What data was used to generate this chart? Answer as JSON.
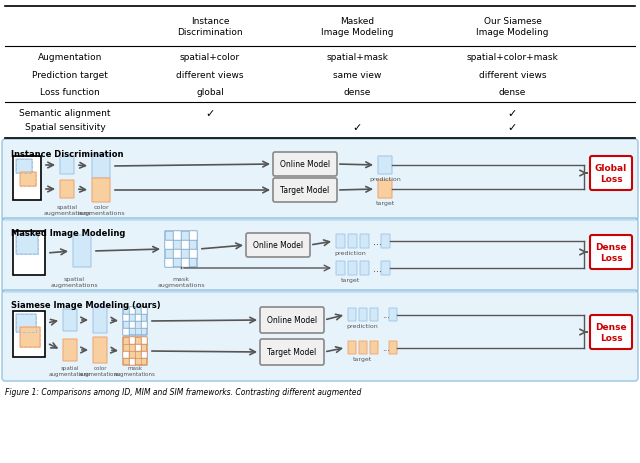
{
  "title": "Figure 1: Comparisons among ID, MIM and SIM frameworks. Contrasting different augmented",
  "border_color": "#5ba3d0",
  "table": {
    "col_headers": [
      "",
      "Instance\nDiscrimination",
      "Masked\nImage Modeling",
      "Our Siamese\nImage Modeling"
    ],
    "rows": [
      [
        "Augmentation",
        "spatial+color",
        "spatial+mask",
        "spatial+color+mask"
      ],
      [
        "Prediction target",
        "different views",
        "same view",
        "different views"
      ],
      [
        "Loss function",
        "global",
        "dense",
        "dense"
      ]
    ],
    "check_rows": [
      [
        "Semantic alignment",
        true,
        false,
        true
      ],
      [
        "Spatial sensitivity",
        false,
        true,
        true
      ]
    ]
  },
  "sections": [
    {
      "label": "Instance Discrimination",
      "bg_color": "#e8f4fb",
      "has_online_target": true,
      "online_path": "blue",
      "target_path": "orange",
      "loss_label": "Global\nLoss",
      "loss_color": "#cc0000",
      "has_masked": false,
      "has_color_aug": true
    },
    {
      "label": "Masked Image Modeling",
      "bg_color": "#e8f4fb",
      "has_online_target": false,
      "online_path": "blue",
      "target_path": "blue",
      "loss_label": "Dense\nLoss",
      "loss_color": "#cc0000",
      "has_masked": true,
      "has_color_aug": false
    },
    {
      "label": "Siamese Image Modeling (ours)",
      "bg_color": "#e8f4fb",
      "has_online_target": true,
      "online_path": "blue",
      "target_path": "orange",
      "loss_label": "Dense\nLoss",
      "loss_color": "#cc0000",
      "has_masked": true,
      "has_color_aug": true
    }
  ],
  "blue_color": "#a8c8e8",
  "orange_color": "#f0a878",
  "blue_light": "#d0e8f8",
  "orange_light": "#f8d0a0",
  "grid_color": "#8ab0d0",
  "box_border_blue": "#7090b0",
  "box_border_orange": "#c07040"
}
